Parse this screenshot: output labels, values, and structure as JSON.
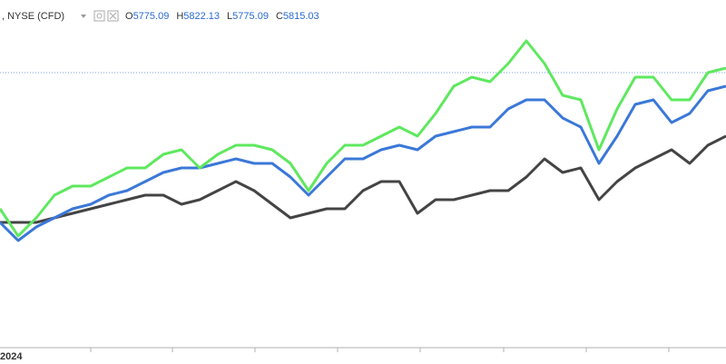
{
  "header": {
    "symbol": ", NYSE (CFD)",
    "ohlc": [
      {
        "label": "O",
        "value": 5775.09
      },
      {
        "label": "H",
        "value": 5822.13
      },
      {
        "label": "L",
        "value": 5775.09
      },
      {
        "label": "C",
        "value": 5815.03
      }
    ]
  },
  "chart_data": {
    "type": "line",
    "categories": [
      "2024",
      null,
      null,
      null,
      null,
      null,
      null,
      null,
      null,
      null,
      null,
      null,
      null,
      null,
      null,
      null,
      null,
      null,
      null,
      null,
      null,
      null,
      null,
      null,
      null,
      null,
      null,
      null,
      null,
      null,
      null,
      null,
      null,
      null,
      null,
      null,
      null,
      null,
      null,
      null,
      null
    ],
    "series": [
      {
        "color": "#5ee85e",
        "values": [
          153,
          123,
          143,
          168,
          178,
          178,
          188,
          198,
          198,
          213,
          218,
          198,
          213,
          223,
          223,
          218,
          203,
          173,
          203,
          223,
          223,
          233,
          243,
          233,
          258,
          288,
          298,
          293,
          313,
          338,
          313,
          278,
          273,
          218,
          263,
          298,
          298,
          273,
          273,
          303,
          308
        ]
      },
      {
        "color": "#3b78d8",
        "values": [
          138,
          118,
          133,
          143,
          153,
          158,
          168,
          173,
          183,
          193,
          198,
          198,
          203,
          208,
          203,
          203,
          188,
          168,
          188,
          208,
          208,
          218,
          223,
          218,
          233,
          238,
          243,
          243,
          263,
          273,
          273,
          253,
          243,
          203,
          233,
          268,
          273,
          248,
          258,
          283,
          288
        ]
      },
      {
        "color": "#444444",
        "values": [
          138,
          138,
          138,
          143,
          148,
          153,
          158,
          163,
          168,
          168,
          158,
          163,
          173,
          183,
          173,
          158,
          143,
          148,
          153,
          153,
          173,
          183,
          183,
          148,
          163,
          163,
          168,
          173,
          173,
          188,
          208,
          193,
          198,
          163,
          183,
          198,
          208,
          218,
          203,
          223,
          233
        ]
      }
    ],
    "price_line": 303,
    "price_line_color": "#7aa6e6",
    "ylim": [
      0,
      383
    ]
  }
}
